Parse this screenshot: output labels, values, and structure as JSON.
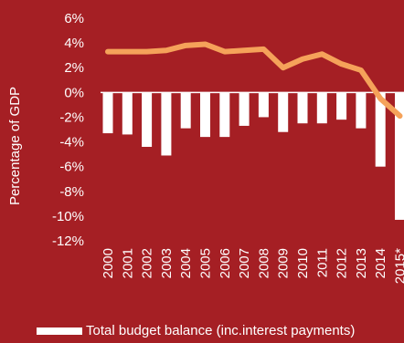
{
  "chart_data": {
    "type": "bar",
    "categories": [
      "2000",
      "2001",
      "2002",
      "2003",
      "2004",
      "2005",
      "2006",
      "2007",
      "2008",
      "2009",
      "2010",
      "2011",
      "2012",
      "2013",
      "2014",
      "2015*"
    ],
    "series": [
      {
        "name": "Total budget balance (inc.interest payments)",
        "type": "bar",
        "values": [
          -3.3,
          -3.4,
          -4.4,
          -5.1,
          -2.9,
          -3.6,
          -3.6,
          -2.7,
          -2.0,
          -3.2,
          -2.5,
          -2.5,
          -2.2,
          -2.9,
          -6.0,
          -10.3
        ]
      },
      {
        "name": "",
        "type": "line",
        "values": [
          3.3,
          3.3,
          3.3,
          3.4,
          3.8,
          3.9,
          3.3,
          3.4,
          3.5,
          2.0,
          2.7,
          3.1,
          2.3,
          1.8,
          -0.5,
          -1.9
        ]
      }
    ],
    "ylabel": "Percentage of GDP",
    "yticks": [
      "6%",
      "4%",
      "2%",
      "0%",
      "-2%",
      "-4%",
      "-6%",
      "-8%",
      "-10%",
      "-12%"
    ],
    "ylim": [
      -12,
      6
    ],
    "colors": {
      "bar": "#ffffff",
      "line": "#f5a25a",
      "background": "#a51f24"
    },
    "legend": {
      "position": "bottom",
      "entries": [
        "Total budget balance (inc.interest payments)"
      ]
    }
  }
}
